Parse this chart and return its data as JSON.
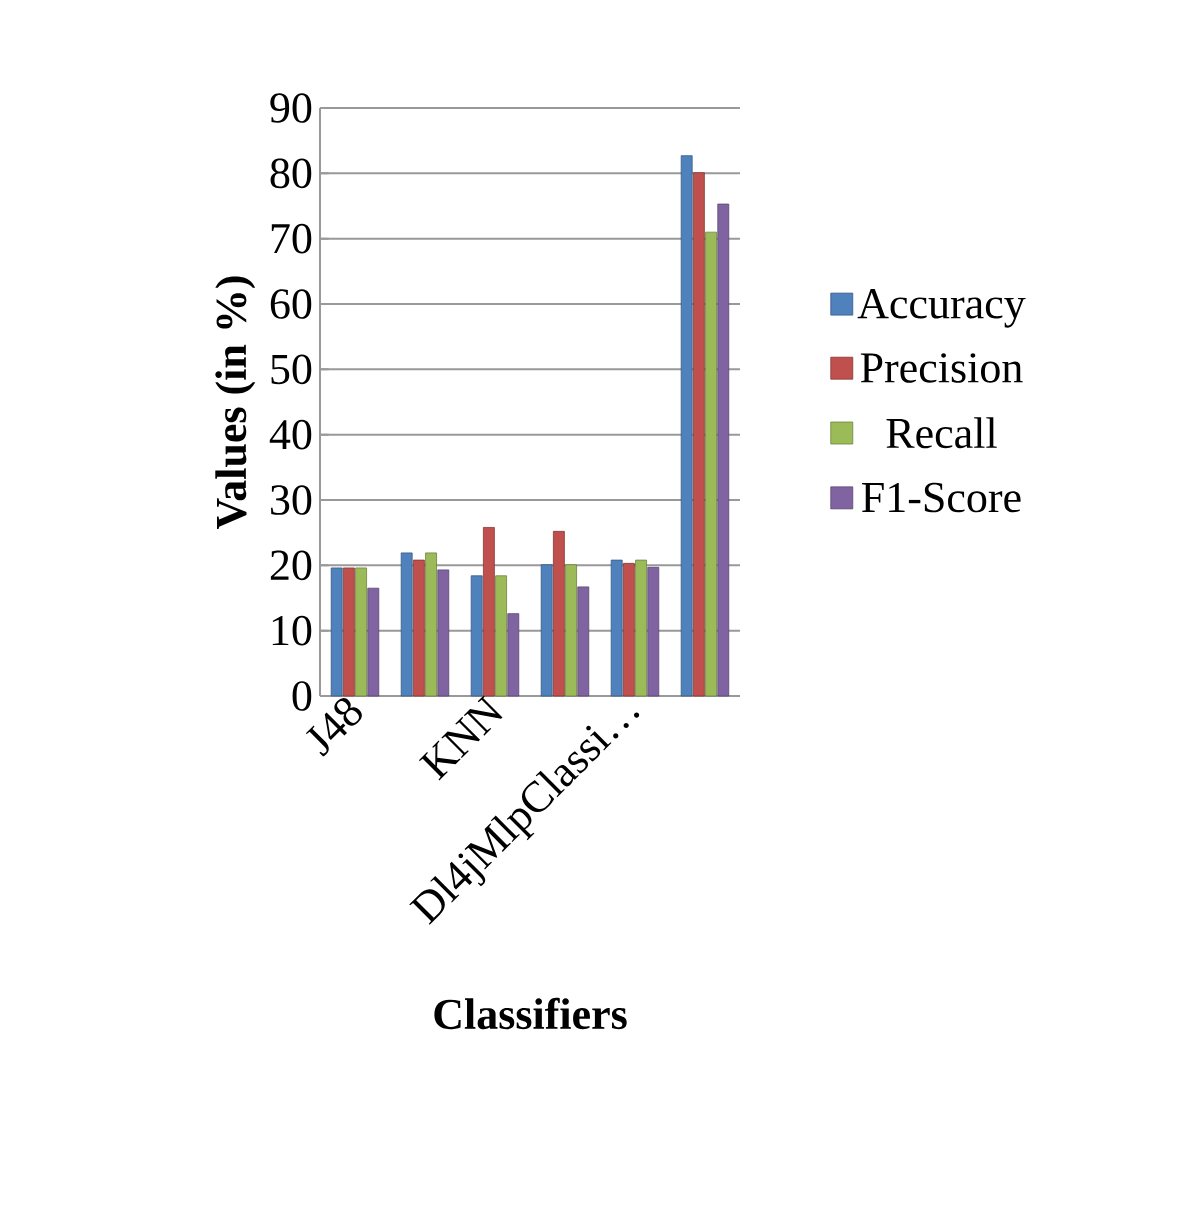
{
  "chart_data": {
    "type": "bar",
    "xlabel": "Classifiers",
    "ylabel": "Values (in %)",
    "categories": [
      "J48",
      null,
      "KNN",
      null,
      "Dl4jMlpClassi…",
      null
    ],
    "series": [
      {
        "name": "Accuracy",
        "color": "#4f81bd",
        "values": [
          19.6,
          21.9,
          18.4,
          20.1,
          20.8,
          82.7
        ]
      },
      {
        "name": "Precision",
        "color": "#c0504d",
        "values": [
          19.6,
          20.8,
          25.8,
          25.2,
          20.3,
          80.1
        ]
      },
      {
        "name": "Recall",
        "color": "#9bbb59",
        "values": [
          19.6,
          21.9,
          18.4,
          20.1,
          20.8,
          71.0
        ]
      },
      {
        "name": "F1-Score",
        "color": "#8064a2",
        "values": [
          16.5,
          19.3,
          12.6,
          16.7,
          19.7,
          75.3
        ]
      }
    ],
    "ylim": [
      0,
      90
    ],
    "yticks": [
      0,
      10,
      20,
      30,
      40,
      50,
      60,
      70,
      80,
      90
    ],
    "grid": "y",
    "legend": "right"
  }
}
